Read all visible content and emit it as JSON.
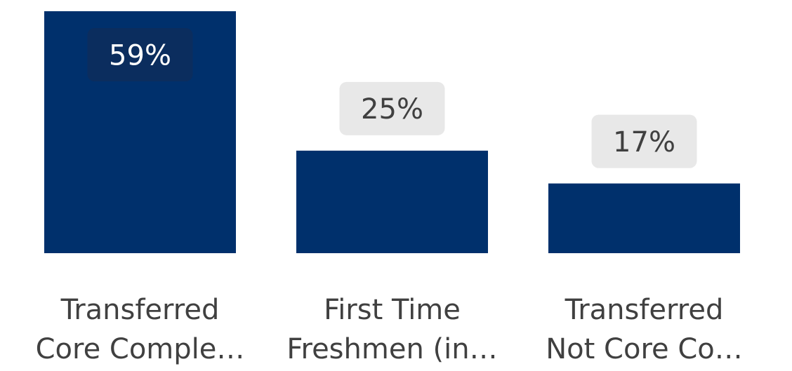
{
  "chart_data": {
    "type": "bar",
    "categories": [
      "Transferred Core Comple…",
      "First Time Freshmen (in…",
      "Transferred Not Core Co…"
    ],
    "category_lines": [
      [
        "Transferred",
        "Core Comple…"
      ],
      [
        "First Time",
        "Freshmen (in…"
      ],
      [
        "Transferred",
        "Not Core Co…"
      ]
    ],
    "values": [
      59,
      25,
      17
    ],
    "data_labels": [
      "59%",
      "25%",
      "17%"
    ],
    "value_unit": "%",
    "ylim": [
      0,
      59
    ],
    "grid": false,
    "legend": "none",
    "colors": {
      "bar": "#00306C",
      "label_box_outside": "#E8E8E8",
      "label_box_inside": "#0B2D5E",
      "label_text_outside": "#404040",
      "label_text_inside": "#FFFFFF",
      "category_text": "#404040"
    }
  }
}
